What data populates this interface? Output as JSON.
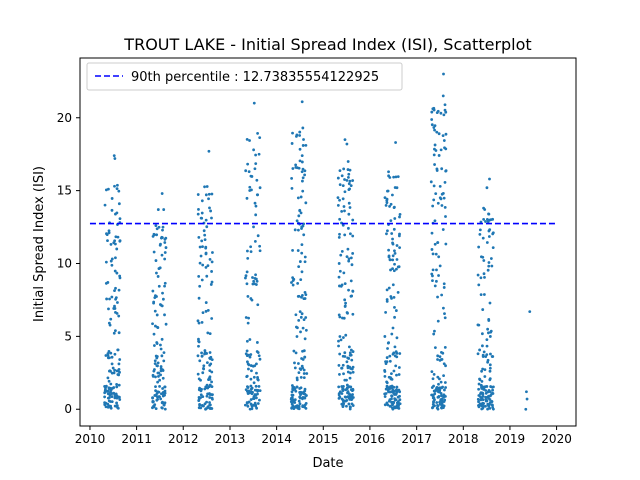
{
  "chart_data": {
    "type": "scatter",
    "title": "TROUT LAKE - Initial Spread Index (ISI), Scatterplot",
    "xlabel": "Date",
    "ylabel": "Initial Spread Index (ISI)",
    "x_axis_type": "date",
    "xlim": [
      "2009-10-15",
      "2020-06-01"
    ],
    "ylim": [
      -1.15,
      24.1
    ],
    "x_ticks": [
      "2010",
      "2011",
      "2012",
      "2013",
      "2014",
      "2015",
      "2016",
      "2017",
      "2018",
      "2019",
      "2020"
    ],
    "y_ticks": [
      0,
      5,
      10,
      15,
      20
    ],
    "grid": false,
    "legend_position": "upper left",
    "marker_color": "#1f77b4",
    "reference_line": {
      "label": "90th percentile : 12.73835554122925",
      "value": 12.73835554122925,
      "x_start": "2010-01-01",
      "x_end": "2020-01-01",
      "color": "#0000ff",
      "style": "dashed"
    },
    "seasons": [
      {
        "year": 2010,
        "start": "2010-04-25",
        "end": "2010-08-25",
        "max": 17.4,
        "n": 150
      },
      {
        "year": 2011,
        "start": "2011-05-05",
        "end": "2011-08-20",
        "max": 14.8,
        "n": 130
      },
      {
        "year": 2012,
        "start": "2012-04-25",
        "end": "2012-08-20",
        "max": 17.7,
        "n": 140
      },
      {
        "year": 2013,
        "start": "2013-05-01",
        "end": "2013-08-25",
        "max": 21.0,
        "n": 130
      },
      {
        "year": 2014,
        "start": "2014-04-25",
        "end": "2014-08-25",
        "max": 21.1,
        "n": 170
      },
      {
        "year": 2015,
        "start": "2015-04-25",
        "end": "2015-08-25",
        "max": 18.5,
        "n": 170
      },
      {
        "year": 2016,
        "start": "2016-04-25",
        "end": "2016-08-25",
        "max": 18.3,
        "n": 170
      },
      {
        "year": 2017,
        "start": "2017-04-25",
        "end": "2017-08-20",
        "max": 23.0,
        "n": 170
      },
      {
        "year": 2018,
        "start": "2018-04-25",
        "end": "2018-08-25",
        "max": 15.8,
        "n": 150
      }
    ],
    "points": [
      {
        "x": "2010-07-10",
        "y": 17.4
      },
      {
        "x": "2010-07-15",
        "y": 17.2
      },
      {
        "x": "2010-07-12",
        "y": 15.3
      },
      {
        "x": "2011-06-20",
        "y": 13.7
      },
      {
        "x": "2011-07-20",
        "y": 14.8
      },
      {
        "x": "2011-08-01",
        "y": 13.7
      },
      {
        "x": "2012-07-20",
        "y": 17.7
      },
      {
        "x": "2013-07-10",
        "y": 21.0
      },
      {
        "x": "2013-07-05",
        "y": 17.8
      },
      {
        "x": "2013-07-15",
        "y": 16.5
      },
      {
        "x": "2014-07-20",
        "y": 21.1
      },
      {
        "x": "2014-07-25",
        "y": 19.3
      },
      {
        "x": "2014-07-28",
        "y": 18.1
      },
      {
        "x": "2015-06-20",
        "y": 18.5
      },
      {
        "x": "2015-07-05",
        "y": 18.2
      },
      {
        "x": "2015-07-15",
        "y": 17.0
      },
      {
        "x": "2016-06-05",
        "y": 15.9
      },
      {
        "x": "2016-07-20",
        "y": 18.3
      },
      {
        "x": "2016-06-25",
        "y": 14.7
      },
      {
        "x": "2017-07-30",
        "y": 23.0
      },
      {
        "x": "2017-07-28",
        "y": 21.5
      },
      {
        "x": "2017-08-02",
        "y": 20.2
      },
      {
        "x": "2018-07-25",
        "y": 15.8
      },
      {
        "x": "2018-07-05",
        "y": 15.2
      },
      {
        "x": "2019-05-10",
        "y": 1.2
      },
      {
        "x": "2019-05-15",
        "y": 0.7
      },
      {
        "x": "2019-05-05",
        "y": 0.0
      },
      {
        "x": "2019-06-05",
        "y": 6.7
      }
    ]
  }
}
